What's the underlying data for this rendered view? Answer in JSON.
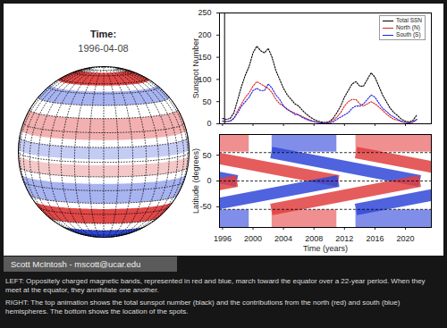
{
  "credit": "Scott McIntosh - mscott@ucar.edu",
  "caption": [
    "LEFT: Oppositely charged magnetic bands, represented in red and blue, march toward the equator over a 22-year period. When they meet at the equator, they annihilate one another.",
    "RIGHT: The top animation shows the total sunspot number (black) and the contributions from the north (red) and south (blue) hemispheres. The bottom shows the location of the spots."
  ],
  "chart_data": [
    {
      "type": "globe",
      "title": "Time:",
      "subtitle": "1996-04-08",
      "tick_labels": false,
      "bands": [
        {
          "lat": [
            58,
            75
          ],
          "color": "#e04848"
        },
        {
          "lat": [
            40,
            52
          ],
          "color": "#a8b4f0"
        },
        {
          "lat": [
            15,
            30
          ],
          "color": "#f2b0b0"
        },
        {
          "lat": [
            2,
            10
          ],
          "color": "#c4ccf4"
        },
        {
          "lat": [
            -10,
            -2
          ],
          "color": "#f4c8c8"
        },
        {
          "lat": [
            -30,
            -15
          ],
          "color": "#a8b4f0"
        },
        {
          "lat": [
            -50,
            -35
          ],
          "color": "#e04848"
        },
        {
          "lat": [
            -80,
            -60
          ],
          "color": "#3048d8"
        }
      ]
    },
    {
      "type": "line",
      "y_label": "Sunspot Number",
      "legend": "top-right",
      "tick_labels": "y",
      "xlim": [
        1995.6,
        2023.4
      ],
      "xticks": [
        1996,
        2000,
        2004,
        2008,
        2012,
        2016,
        2020
      ],
      "ylim": [
        0,
        250
      ],
      "yticks": [
        0,
        50,
        100,
        150,
        200,
        250
      ],
      "time_marker": 1996.27,
      "x": [
        1996,
        1996.5,
        1997,
        1997.5,
        1998,
        1998.5,
        1999,
        1999.5,
        2000,
        2000.5,
        2001,
        2001.5,
        2002,
        2002.5,
        2003,
        2003.5,
        2004,
        2004.5,
        2005,
        2005.5,
        2006,
        2006.5,
        2007,
        2007.5,
        2008,
        2008.5,
        2009,
        2009.5,
        2010,
        2010.5,
        2011,
        2011.5,
        2012,
        2012.5,
        2013,
        2013.5,
        2014,
        2014.5,
        2015,
        2015.5,
        2016,
        2016.5,
        2017,
        2017.5,
        2018,
        2018.5,
        2019,
        2019.5,
        2020,
        2020.5,
        2021,
        2021.5
      ],
      "series": [
        {
          "name": "Total SSN",
          "color": "#000000",
          "line_style": "dotted",
          "values": [
            12,
            10,
            12,
            25,
            55,
            85,
            110,
            130,
            160,
            175,
            165,
            160,
            170,
            150,
            120,
            100,
            80,
            65,
            55,
            45,
            40,
            30,
            22,
            15,
            10,
            6,
            4,
            3,
            5,
            12,
            25,
            40,
            60,
            75,
            90,
            95,
            85,
            85,
            100,
            115,
            105,
            85,
            65,
            50,
            35,
            25,
            18,
            10,
            6,
            4,
            8,
            20
          ]
        },
        {
          "name": "North (N)",
          "color": "#e02020",
          "line_style": "dotted",
          "values": [
            6,
            5,
            6,
            13,
            30,
            45,
            60,
            70,
            85,
            95,
            90,
            85,
            80,
            70,
            55,
            45,
            40,
            32,
            28,
            24,
            20,
            16,
            12,
            8,
            5,
            3,
            2,
            2,
            3,
            8,
            15,
            25,
            40,
            50,
            55,
            55,
            45,
            40,
            45,
            50,
            45,
            38,
            30,
            22,
            15,
            10,
            8,
            5,
            3,
            2,
            4,
            10
          ]
        },
        {
          "name": "South (S)",
          "color": "#2020e0",
          "line_style": "dotted",
          "values": [
            6,
            5,
            6,
            12,
            25,
            40,
            50,
            60,
            75,
            80,
            75,
            75,
            90,
            80,
            65,
            55,
            40,
            33,
            27,
            21,
            20,
            14,
            10,
            7,
            5,
            3,
            2,
            1,
            2,
            4,
            10,
            15,
            20,
            25,
            35,
            40,
            40,
            45,
            55,
            65,
            60,
            47,
            35,
            28,
            20,
            15,
            10,
            5,
            3,
            2,
            4,
            10
          ]
        }
      ]
    },
    {
      "type": "bands",
      "x_label": "Time (years)",
      "y_label": "Latitude (degrees)",
      "xlim": [
        1995.6,
        2023.4
      ],
      "xticks": [
        1996,
        2000,
        2004,
        2008,
        2012,
        2016,
        2020
      ],
      "ylim": [
        -90,
        90
      ],
      "yticks": [
        -50,
        0,
        50
      ],
      "dashed_lines": [
        -55,
        0,
        55
      ],
      "polar_fields": [
        {
          "x": [
            1994,
            1999.5
          ],
          "y": [
            56,
            90
          ],
          "color": "#e86060"
        },
        {
          "x": [
            2002.5,
            2011
          ],
          "y": [
            56,
            90
          ],
          "color": "#4a5ee0"
        },
        {
          "x": [
            2013.5,
            2024
          ],
          "y": [
            56,
            90
          ],
          "color": "#e86060"
        },
        {
          "x": [
            1994,
            1999.5
          ],
          "y": [
            -90,
            -56
          ],
          "color": "#4a5ee0"
        },
        {
          "x": [
            2002.5,
            2011
          ],
          "y": [
            -90,
            -56
          ],
          "color": "#e86060"
        },
        {
          "x": [
            2013.5,
            2024
          ],
          "y": [
            -90,
            -56
          ],
          "color": "#4a5ee0"
        }
      ],
      "bands": [
        {
          "start": [
            1978.2,
            55
          ],
          "end": [
            1997.9,
            0
          ],
          "color": "#3048d8"
        },
        {
          "start": [
            1991.5,
            55
          ],
          "end": [
            2011.2,
            0
          ],
          "color": "#e04040"
        },
        {
          "start": [
            2002.4,
            55
          ],
          "end": [
            2021.9,
            0
          ],
          "color": "#3048d8"
        },
        {
          "start": [
            2013.5,
            55
          ],
          "end": [
            2033.2,
            0
          ],
          "color": "#e04040"
        },
        {
          "start": [
            1978.2,
            -55
          ],
          "end": [
            1997.9,
            0
          ],
          "color": "#e04040"
        },
        {
          "start": [
            1991.5,
            -55
          ],
          "end": [
            2011.2,
            0
          ],
          "color": "#3048d8"
        },
        {
          "start": [
            2002.4,
            -55
          ],
          "end": [
            2021.9,
            0
          ],
          "color": "#e04040"
        },
        {
          "start": [
            2013.5,
            -55
          ],
          "end": [
            2033.2,
            0
          ],
          "color": "#3048d8"
        }
      ]
    }
  ]
}
